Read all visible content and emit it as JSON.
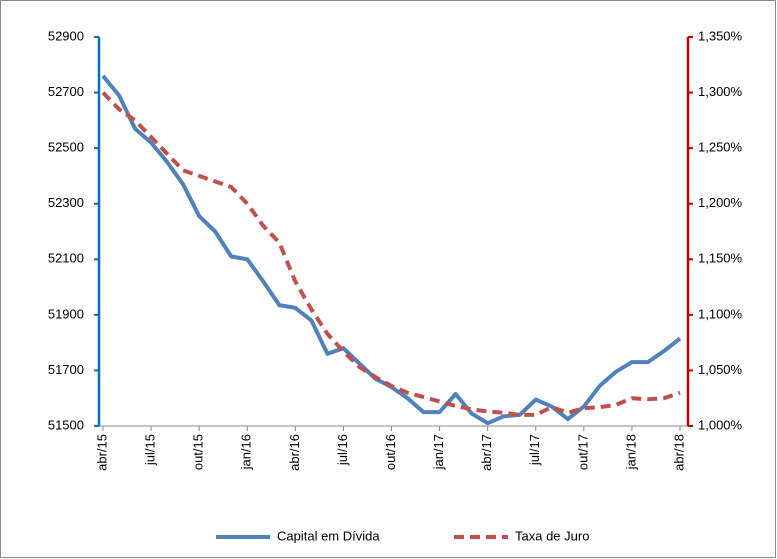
{
  "chart_data": {
    "type": "line",
    "categories": [
      "abr/15",
      null,
      null,
      "jul/15",
      null,
      null,
      "out/15",
      null,
      null,
      "jan/16",
      null,
      null,
      "abr/16",
      null,
      null,
      "jul/16",
      null,
      null,
      "out/16",
      null,
      null,
      "jan/17",
      null,
      null,
      "abr/17",
      null,
      null,
      "jul/17",
      null,
      null,
      "out/17",
      null,
      null,
      "jan/18",
      null,
      null,
      "abr/18"
    ],
    "series": [
      {
        "name": "Capital em Dívida",
        "color": "#4f81bd",
        "linestyle": "solid",
        "values": [
          52760,
          52690,
          52570,
          52520,
          52450,
          52370,
          52255,
          52200,
          52110,
          52100,
          52020,
          51935,
          51925,
          51880,
          51760,
          51780,
          51725,
          51670,
          51640,
          51600,
          51550,
          51550,
          51615,
          51545,
          51510,
          51535,
          51540,
          51595,
          51570,
          51525,
          51570,
          51645,
          51695,
          51730,
          51730,
          51770,
          51815
        ]
      },
      {
        "name": "Taxa de Juro",
        "color": "#c0504d",
        "linestyle": "dashed",
        "axis": "y2",
        "values": [
          1.3,
          1.285,
          1.275,
          1.26,
          1.245,
          1.23,
          1.225,
          1.22,
          1.215,
          1.2,
          1.18,
          1.165,
          1.13,
          1.105,
          1.083,
          1.067,
          1.053,
          1.044,
          1.036,
          1.03,
          1.026,
          1.022,
          1.018,
          1.015,
          1.013,
          1.012,
          1.01,
          1.01,
          1.017,
          1.012,
          1.016,
          1.017,
          1.019,
          1.025,
          1.024,
          1.025,
          1.03
        ]
      }
    ],
    "ylim": [
      51500,
      52900
    ],
    "yticks": [
      51500,
      51700,
      51900,
      52100,
      52300,
      52500,
      52700,
      52900
    ],
    "y2lim": [
      1.0,
      1.35
    ],
    "y2ticks": [
      {
        "value": 1.0,
        "label": "1,000%"
      },
      {
        "value": 1.05,
        "label": "1,050%"
      },
      {
        "value": 1.1,
        "label": "1,100%"
      },
      {
        "value": 1.15,
        "label": "1,150%"
      },
      {
        "value": 1.2,
        "label": "1,200%"
      },
      {
        "value": 1.25,
        "label": "1,250%"
      },
      {
        "value": 1.3,
        "label": "1,300%"
      },
      {
        "value": 1.35,
        "label": "1,350%"
      }
    ],
    "y_axis_color": "#0070c0",
    "y2_axis_color": "#c00000",
    "grid": false,
    "legend": "bottom"
  }
}
